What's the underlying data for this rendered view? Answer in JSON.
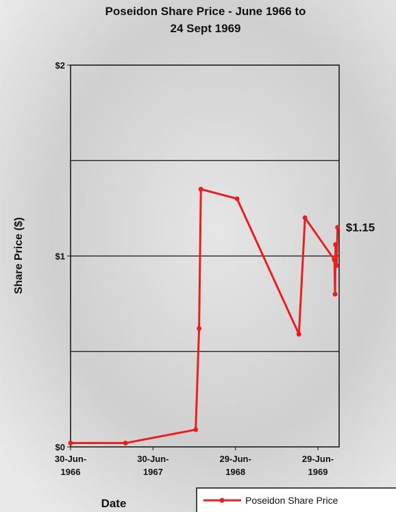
{
  "chart_data": {
    "type": "line",
    "title": [
      "Poseidon Share Price - June 1966 to",
      "24 Sept 1969"
    ],
    "y_label": "Share Price ($)",
    "x_label": "Date",
    "annotation": "$1.15",
    "x": [
      "1966-06-30",
      "1967-02-28",
      "1968-01-05",
      "1968-01-20",
      "1968-01-28",
      "1968-07-06",
      "1969-04-06",
      "1969-05-03",
      "1969-09-10",
      "1969-09-13",
      "1969-09-15",
      "1969-09-20",
      "1969-09-24"
    ],
    "series": [
      {
        "name": "Poseidon Share Price",
        "color": "#ee1c1c",
        "values": [
          0.02,
          0.02,
          0.09,
          0.62,
          1.35,
          1.3,
          0.59,
          1.2,
          0.98,
          0.8,
          1.06,
          0.95,
          1.15
        ]
      }
    ],
    "xlim": [
      "1966-06-30",
      "1969-10-01"
    ],
    "xticks": [
      {
        "value": "1966-06-30",
        "label": [
          "30-Jun-",
          "1966"
        ]
      },
      {
        "value": "1967-06-30",
        "label": [
          "30-Jun-",
          "1967"
        ]
      },
      {
        "value": "1968-06-29",
        "label": [
          "29-Jun-",
          "1968"
        ]
      },
      {
        "value": "1969-06-29",
        "label": [
          "29-Jun-",
          "1969"
        ]
      }
    ],
    "ylim": [
      0,
      2
    ],
    "yticks": [
      {
        "value": 0,
        "label": "$0"
      },
      {
        "value": 1,
        "label": "$1"
      },
      {
        "value": 2,
        "label": "$2"
      }
    ],
    "ygrid": [
      0.5,
      1,
      1.5
    ],
    "legend": "bottom-right"
  }
}
